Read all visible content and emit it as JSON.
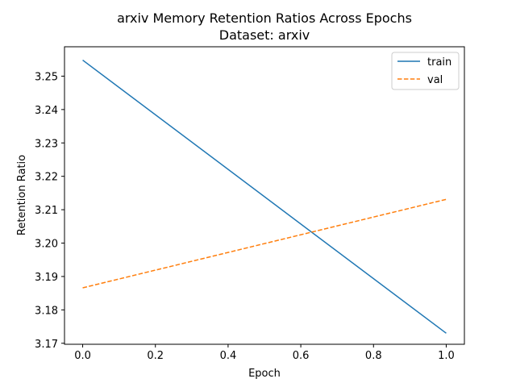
{
  "chart_data": {
    "type": "line",
    "title": "arxiv Memory Retention Ratios Across Epochs",
    "subtitle": "Dataset: arxiv",
    "xlabel": "Epoch",
    "ylabel": "Retention Ratio",
    "xlim": [
      -0.05,
      1.05
    ],
    "ylim": [
      3.1697,
      3.2588
    ],
    "xticks": [
      0.0,
      0.2,
      0.4,
      0.6,
      0.8,
      1.0
    ],
    "xtick_labels": [
      "0.0",
      "0.2",
      "0.4",
      "0.6",
      "0.8",
      "1.0"
    ],
    "yticks": [
      3.17,
      3.18,
      3.19,
      3.2,
      3.21,
      3.22,
      3.23,
      3.24,
      3.25
    ],
    "ytick_labels": [
      "3.17",
      "3.18",
      "3.19",
      "3.20",
      "3.21",
      "3.22",
      "3.23",
      "3.24",
      "3.25"
    ],
    "grid": false,
    "legend_position": "top-right",
    "series": [
      {
        "name": "train",
        "color": "#1f77b4",
        "line_style": "solid",
        "x": [
          0.0,
          1.0
        ],
        "y": [
          3.2548,
          3.173
        ]
      },
      {
        "name": "val",
        "color": "#ff7f0e",
        "line_style": "dashed",
        "x": [
          0.0,
          1.0
        ],
        "y": [
          3.1866,
          3.2131
        ]
      }
    ]
  }
}
